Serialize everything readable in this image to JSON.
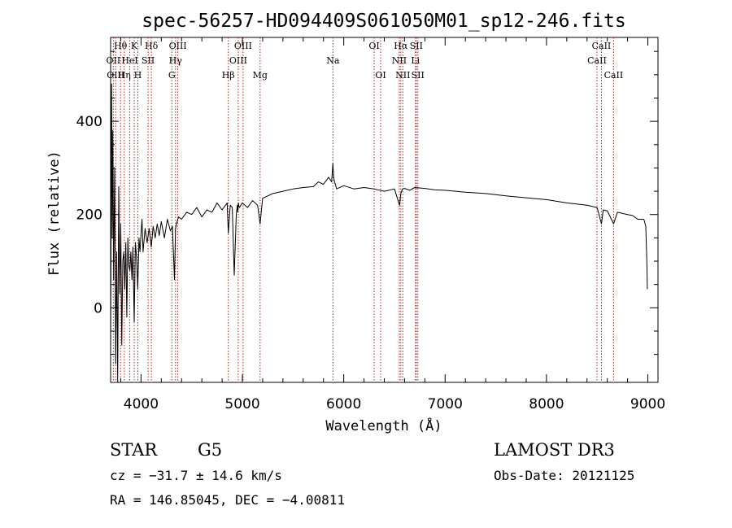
{
  "chart_data": {
    "type": "line",
    "title": "spec-56257-HD094409S061050M01_sp12-246.fits",
    "xlabel": "Wavelength (Å)",
    "ylabel": "Flux (relative)",
    "xlim": [
      3700,
      9100
    ],
    "ylim": [
      -160,
      580
    ],
    "xticks": [
      4000,
      5000,
      6000,
      7000,
      8000,
      9000
    ],
    "xtick_labels": [
      "4000",
      "5000",
      "6000",
      "7000",
      "8000",
      "9000"
    ],
    "yticks": [
      0,
      200,
      400
    ],
    "ytick_labels": [
      "0",
      "200",
      "400"
    ],
    "grid": false,
    "legend": "none",
    "series": [
      {
        "name": "spectrum",
        "x": [
          3700,
          3710,
          3715,
          3722,
          3730,
          3740,
          3750,
          3760,
          3770,
          3780,
          3790,
          3800,
          3810,
          3820,
          3830,
          3840,
          3850,
          3860,
          3870,
          3880,
          3890,
          3900,
          3910,
          3920,
          3933,
          3945,
          3955,
          3968,
          3980,
          3990,
          4000,
          4010,
          4020,
          4040,
          4060,
          4080,
          4101,
          4120,
          4140,
          4160,
          4180,
          4200,
          4230,
          4260,
          4290,
          4310,
          4330,
          4340,
          4350,
          4370,
          4400,
          4450,
          4500,
          4550,
          4600,
          4650,
          4700,
          4750,
          4800,
          4850,
          4861,
          4880,
          4900,
          4920,
          4940,
          4950,
          4955,
          4960,
          4970,
          5000,
          5050,
          5100,
          5150,
          5175,
          5200,
          5300,
          5400,
          5500,
          5600,
          5700,
          5750,
          5800,
          5850,
          5880,
          5893,
          5900,
          5910,
          5930,
          6000,
          6100,
          6200,
          6300,
          6400,
          6500,
          6550,
          6563,
          6580,
          6600,
          6650,
          6700,
          6800,
          6900,
          7000,
          7200,
          7400,
          7600,
          7800,
          8000,
          8200,
          8400,
          8500,
          8542,
          8560,
          8600,
          8662,
          8700,
          8800,
          8850,
          8900,
          8960,
          8980,
          8990,
          8995
        ],
        "values": [
          -100,
          480,
          150,
          380,
          60,
          300,
          -120,
          120,
          -160,
          260,
          30,
          180,
          -80,
          100,
          120,
          40,
          140,
          -20,
          150,
          90,
          80,
          120,
          60,
          130,
          -30,
          140,
          110,
          40,
          150,
          120,
          160,
          190,
          120,
          170,
          140,
          170,
          130,
          175,
          150,
          180,
          155,
          185,
          150,
          190,
          165,
          175,
          60,
          170,
          180,
          195,
          190,
          205,
          200,
          215,
          195,
          210,
          205,
          225,
          210,
          225,
          160,
          220,
          215,
          70,
          200,
          220,
          205,
          225,
          215,
          225,
          215,
          230,
          220,
          180,
          235,
          245,
          250,
          255,
          258,
          260,
          270,
          265,
          280,
          270,
          310,
          280,
          270,
          255,
          262,
          255,
          258,
          255,
          250,
          255,
          220,
          245,
          255,
          256,
          252,
          258,
          256,
          253,
          252,
          248,
          245,
          240,
          236,
          232,
          225,
          220,
          215,
          180,
          210,
          208,
          180,
          205,
          200,
          198,
          190,
          190,
          175,
          100,
          40
        ]
      }
    ],
    "line_ids": [
      {
        "wavelength": 3727,
        "label": "OII",
        "row": 1
      },
      {
        "wavelength": 3750,
        "label": "OIII",
        "row": 2
      },
      {
        "wavelength": 3798,
        "label": "Hθ",
        "row": 0
      },
      {
        "wavelength": 3835,
        "label": "Hη",
        "row": 2
      },
      {
        "wavelength": 3889,
        "label": "HeI",
        "row": 1
      },
      {
        "wavelength": 3933,
        "label": "K",
        "row": 0
      },
      {
        "wavelength": 3968,
        "label": "H",
        "row": 2
      },
      {
        "wavelength": 4070,
        "label": "SII",
        "row": 1
      },
      {
        "wavelength": 4102,
        "label": "Hδ",
        "row": 0
      },
      {
        "wavelength": 4304,
        "label": "G",
        "row": 2
      },
      {
        "wavelength": 4340,
        "label": "Hγ",
        "row": 1
      },
      {
        "wavelength": 4363,
        "label": "OIII",
        "row": 0
      },
      {
        "wavelength": 4861,
        "label": "Hβ",
        "row": 2
      },
      {
        "wavelength": 4959,
        "label": "OIII",
        "row": 1
      },
      {
        "wavelength": 5007,
        "label": "OIII",
        "row": 0
      },
      {
        "wavelength": 5175,
        "label": "Mg",
        "row": 2
      },
      {
        "wavelength": 5893,
        "label": "Na",
        "row": 1
      },
      {
        "wavelength": 6300,
        "label": "OI",
        "row": 0
      },
      {
        "wavelength": 6364,
        "label": "OI",
        "row": 2
      },
      {
        "wavelength": 6548,
        "label": "NII",
        "row": 1
      },
      {
        "wavelength": 6563,
        "label": "Hα",
        "row": 0
      },
      {
        "wavelength": 6583,
        "label": "NII",
        "row": 2
      },
      {
        "wavelength": 6707,
        "label": "Li",
        "row": 1
      },
      {
        "wavelength": 6716,
        "label": "SII",
        "row": 0
      },
      {
        "wavelength": 6731,
        "label": "SII",
        "row": 2
      },
      {
        "wavelength": 8498,
        "label": "CaII",
        "row": 1
      },
      {
        "wavelength": 8542,
        "label": "CaII",
        "row": 0
      },
      {
        "wavelength": 8662,
        "label": "CaII",
        "row": 2
      }
    ],
    "line_id_color": "#b22222"
  },
  "info": {
    "object_class": "STAR",
    "subclass": "G5",
    "survey": "LAMOST DR3",
    "redshift": "cz = −31.7 ± 14.6 km/s",
    "obs_date": "Obs-Date: 20121125",
    "coords": "RA = 146.85045, DEC =  −4.00811"
  }
}
